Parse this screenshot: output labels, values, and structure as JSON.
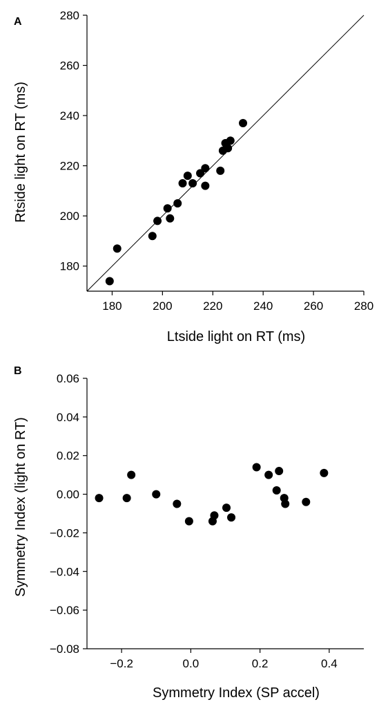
{
  "chart_data": [
    {
      "type": "scatter",
      "panel_label": "A",
      "xlabel": "Ltside light on RT (ms)",
      "ylabel": "Rtside light on RT (ms)",
      "xlim": [
        170,
        280
      ],
      "ylim": [
        170,
        280
      ],
      "xticks": [
        "180",
        "200",
        "220",
        "240",
        "260",
        "280"
      ],
      "yticks": [
        "180",
        "200",
        "220",
        "240",
        "260",
        "280"
      ],
      "xtick_values": [
        180,
        200,
        220,
        240,
        260,
        280
      ],
      "ytick_values": [
        180,
        200,
        220,
        240,
        260,
        280
      ],
      "identity_line": true,
      "grid": false,
      "marker_color": "#000000",
      "points": [
        {
          "x": 179,
          "y": 174
        },
        {
          "x": 182,
          "y": 187
        },
        {
          "x": 196,
          "y": 192
        },
        {
          "x": 198,
          "y": 198
        },
        {
          "x": 202,
          "y": 203
        },
        {
          "x": 203,
          "y": 199
        },
        {
          "x": 206,
          "y": 205
        },
        {
          "x": 208,
          "y": 213
        },
        {
          "x": 210,
          "y": 216
        },
        {
          "x": 212,
          "y": 213
        },
        {
          "x": 215,
          "y": 217
        },
        {
          "x": 217,
          "y": 219
        },
        {
          "x": 217,
          "y": 212
        },
        {
          "x": 223,
          "y": 218
        },
        {
          "x": 224,
          "y": 226
        },
        {
          "x": 225,
          "y": 229
        },
        {
          "x": 226,
          "y": 227
        },
        {
          "x": 227,
          "y": 230
        },
        {
          "x": 232,
          "y": 237
        }
      ]
    },
    {
      "type": "scatter",
      "panel_label": "B",
      "xlabel": "Symmetry Index (SP accel)",
      "ylabel": "Symmetry Index (light on RT)",
      "xlim": [
        -0.3,
        0.5
      ],
      "ylim": [
        -0.08,
        0.06
      ],
      "xticks": [
        "−0.2",
        "0.0",
        "0.2",
        "0.4"
      ],
      "yticks": [
        "−0.08",
        "−0.06",
        "−0.04",
        "−0.02",
        "0.00",
        "0.02",
        "0.04",
        "0.06"
      ],
      "xtick_values": [
        -0.2,
        0.0,
        0.2,
        0.4
      ],
      "ytick_values": [
        -0.08,
        -0.06,
        -0.04,
        -0.02,
        0.0,
        0.02,
        0.04,
        0.06
      ],
      "grid": false,
      "marker_color": "#000000",
      "points": [
        {
          "x": -0.265,
          "y": -0.002
        },
        {
          "x": -0.185,
          "y": -0.002
        },
        {
          "x": -0.172,
          "y": 0.01
        },
        {
          "x": -0.1,
          "y": 0.0
        },
        {
          "x": -0.04,
          "y": -0.005
        },
        {
          "x": -0.005,
          "y": -0.014
        },
        {
          "x": 0.063,
          "y": -0.014
        },
        {
          "x": 0.068,
          "y": -0.011
        },
        {
          "x": 0.103,
          "y": -0.007
        },
        {
          "x": 0.117,
          "y": -0.012
        },
        {
          "x": 0.19,
          "y": 0.014
        },
        {
          "x": 0.225,
          "y": 0.01
        },
        {
          "x": 0.248,
          "y": 0.002
        },
        {
          "x": 0.255,
          "y": 0.012
        },
        {
          "x": 0.27,
          "y": -0.002
        },
        {
          "x": 0.273,
          "y": -0.005
        },
        {
          "x": 0.333,
          "y": -0.004
        },
        {
          "x": 0.385,
          "y": 0.011
        }
      ]
    }
  ]
}
